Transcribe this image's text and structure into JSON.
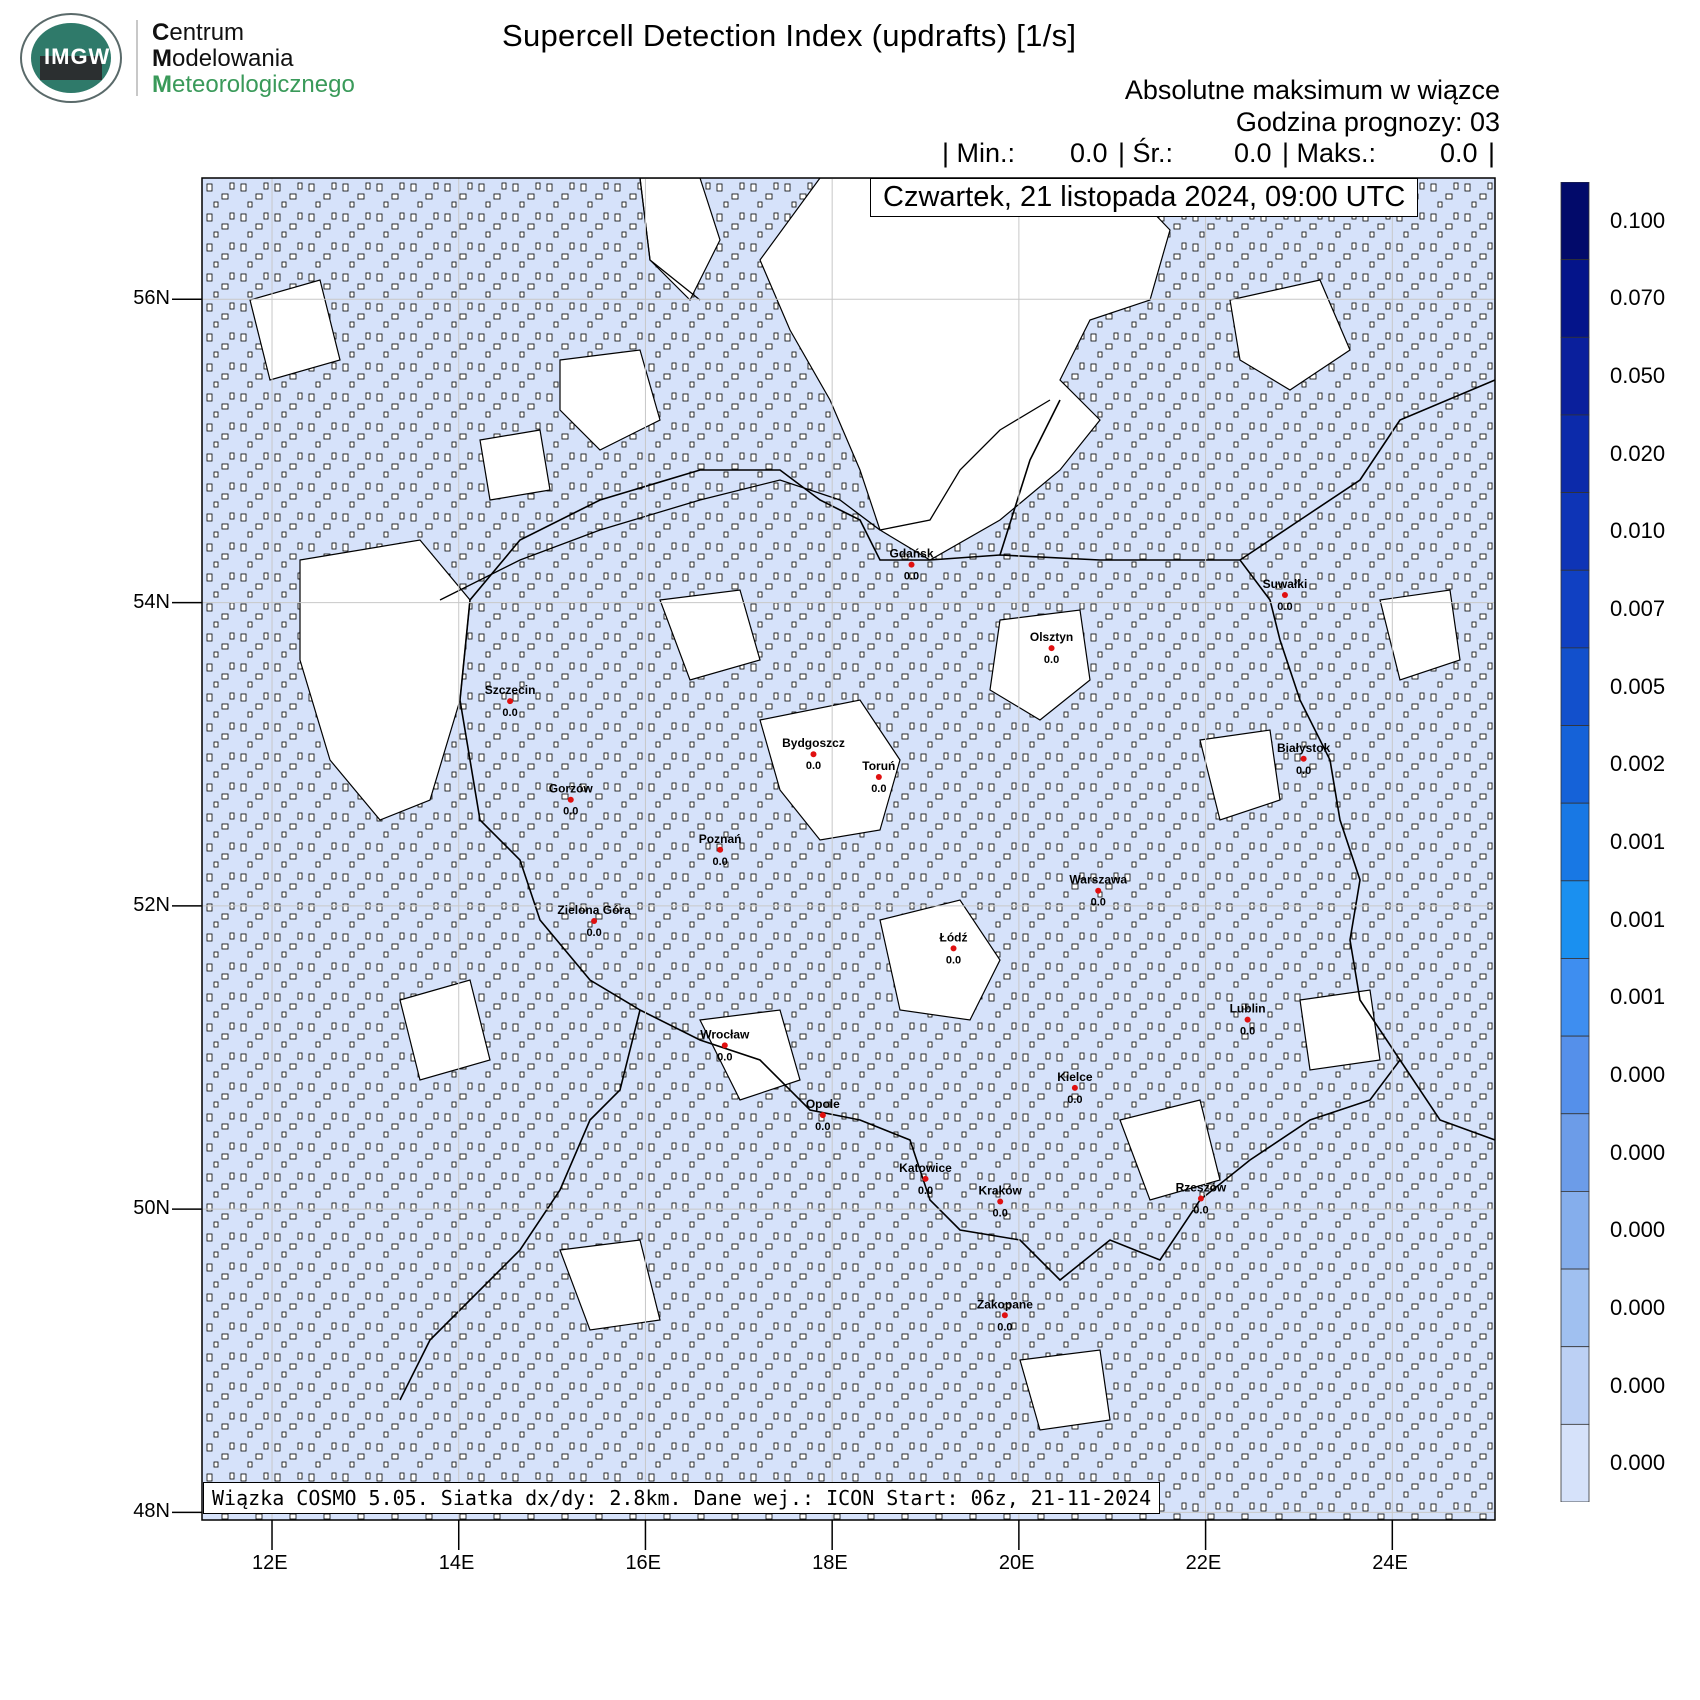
{
  "logo": {
    "emblem_text": "IMGW",
    "line1_initial": "C",
    "line1_rest": "entrum",
    "line2_initial": "M",
    "line2_rest": "odelowania",
    "line3_initial": "M",
    "line3_rest": "eteorologicznego",
    "accent_color": "#3a9a5a"
  },
  "title": "Supercell Detection Index (updrafts) [1/s]",
  "subtitle": "Absolutne maksimum w wiązce",
  "forecast_hour": "Godzina prognozy: 03",
  "stats": {
    "min_label": "| Min.:",
    "min_value": "0.0",
    "avg_label": "| Śr.:",
    "avg_value": "0.0",
    "max_label": "| Maks.:",
    "max_value": "0.0",
    "end": "|"
  },
  "datetime": "Czwartek, 21 listopada 2024, 09:00 UTC",
  "info": "Wiązka COSMO 5.05. Siatka dx/dy: 2.8km. Dane wej.: ICON Start: 06z, 21-11-2024",
  "map": {
    "lat_range": [
      47.95,
      56.8
    ],
    "lon_range": [
      11.25,
      25.1
    ],
    "lat_ticks": [
      "56N",
      "54N",
      "52N",
      "50N",
      "48N"
    ],
    "lat_tick_values": [
      56,
      54,
      52,
      50,
      48
    ],
    "lon_ticks": [
      "12E",
      "14E",
      "16E",
      "18E",
      "20E",
      "22E",
      "24E"
    ],
    "lon_tick_values": [
      12,
      14,
      16,
      18,
      20,
      22,
      24
    ],
    "field_color": "#d6e2fa",
    "background_color": "#ffffff",
    "grid": true
  },
  "cities": [
    {
      "name": "Gdańsk",
      "value": "0.0",
      "lon": 18.85,
      "lat": 54.25
    },
    {
      "name": "Suwałki",
      "value": "0.0",
      "lon": 22.85,
      "lat": 54.05
    },
    {
      "name": "Olsztyn",
      "value": "0.0",
      "lon": 20.35,
      "lat": 53.7
    },
    {
      "name": "Szczecin",
      "value": "0.0",
      "lon": 14.55,
      "lat": 53.35
    },
    {
      "name": "Bydgoszcz",
      "value": "0.0",
      "lon": 17.8,
      "lat": 53.0
    },
    {
      "name": "Toruń",
      "value": "0.0",
      "lon": 18.5,
      "lat": 52.85
    },
    {
      "name": "Białystok",
      "value": "0.0",
      "lon": 23.05,
      "lat": 52.97
    },
    {
      "name": "Gorzów",
      "value": "0.0",
      "lon": 15.2,
      "lat": 52.7
    },
    {
      "name": "Poznań",
      "value": "0.0",
      "lon": 16.8,
      "lat": 52.37
    },
    {
      "name": "Warszawa",
      "value": "0.0",
      "lon": 20.85,
      "lat": 52.1
    },
    {
      "name": "Zielona Góra",
      "value": "0.0",
      "lon": 15.45,
      "lat": 51.9
    },
    {
      "name": "Łódź",
      "value": "0.0",
      "lon": 19.3,
      "lat": 51.72
    },
    {
      "name": "Lublin",
      "value": "0.0",
      "lon": 22.45,
      "lat": 51.25
    },
    {
      "name": "Wrocław",
      "value": "0.0",
      "lon": 16.85,
      "lat": 51.08
    },
    {
      "name": "Kielce",
      "value": "0.0",
      "lon": 20.6,
      "lat": 50.8
    },
    {
      "name": "Opole",
      "value": "0.0",
      "lon": 17.9,
      "lat": 50.62
    },
    {
      "name": "Katowice",
      "value": "0.0",
      "lon": 19.0,
      "lat": 50.2
    },
    {
      "name": "Kraków",
      "value": "0.0",
      "lon": 19.8,
      "lat": 50.05
    },
    {
      "name": "Rzeszów",
      "value": "0.0",
      "lon": 21.95,
      "lat": 50.07
    },
    {
      "name": "Zakopane",
      "value": "0.0",
      "lon": 19.85,
      "lat": 49.3
    }
  ],
  "colorbar": {
    "labels": [
      "0.100",
      "0.070",
      "0.050",
      "0.020",
      "0.010",
      "0.007",
      "0.005",
      "0.002",
      "0.001",
      "0.001",
      "0.001",
      "0.000",
      "0.000",
      "0.000",
      "0.000",
      "0.000",
      "0.000"
    ],
    "colors": [
      "#020a6a",
      "#04148a",
      "#0a1f9c",
      "#0c2aaa",
      "#0e34b6",
      "#1040c2",
      "#1250cc",
      "#1562d8",
      "#1878e4",
      "#1a90f0",
      "#3e8ef0",
      "#5590ea",
      "#6c9ce8",
      "#85aeec",
      "#a0c0f0",
      "#bcd0f4",
      "#d6e2fa"
    ]
  }
}
